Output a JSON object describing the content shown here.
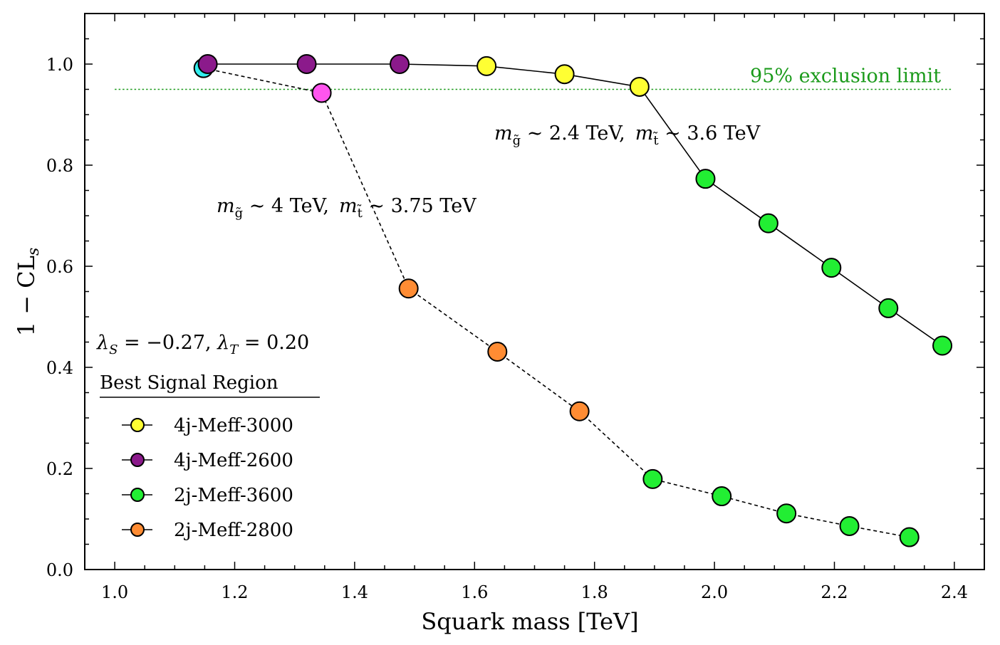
{
  "chart_data": {
    "type": "scatter",
    "xlabel": "Squark mass [TeV]",
    "ylabel": "1 − CL",
    "ylabel_sub": "s",
    "xlim": [
      0.95,
      2.45
    ],
    "ylim": [
      0.0,
      1.1
    ],
    "x_ticks": [
      1.0,
      1.2,
      1.4,
      1.6,
      1.8,
      2.0,
      2.2,
      2.4
    ],
    "x_tick_labels": [
      "1.0",
      "1.2",
      "1.4",
      "1.6",
      "1.8",
      "2.0",
      "2.2",
      "2.4"
    ],
    "y_ticks": [
      0.0,
      0.2,
      0.4,
      0.6,
      0.8,
      1.0
    ],
    "y_tick_labels": [
      "0.0",
      "0.2",
      "0.4",
      "0.6",
      "0.8",
      "1.0"
    ],
    "grid": false,
    "exclusion_line": {
      "y": 0.95,
      "label": "95% exclusion limit",
      "color": "#1a9a1a"
    },
    "series": [
      {
        "line_style": "solid",
        "points": [
          {
            "x": 1.155,
            "y": 1.0,
            "region": "4j-Meff-2600"
          },
          {
            "x": 1.32,
            "y": 1.0,
            "region": "4j-Meff-2600"
          },
          {
            "x": 1.475,
            "y": 1.0,
            "region": "4j-Meff-2600"
          },
          {
            "x": 1.62,
            "y": 0.996,
            "region": "4j-Meff-3000"
          },
          {
            "x": 1.75,
            "y": 0.98,
            "region": "4j-Meff-3000"
          },
          {
            "x": 1.875,
            "y": 0.955,
            "region": "4j-Meff-3000"
          },
          {
            "x": 1.985,
            "y": 0.773,
            "region": "2j-Meff-3600"
          },
          {
            "x": 2.09,
            "y": 0.685,
            "region": "2j-Meff-3600"
          },
          {
            "x": 2.195,
            "y": 0.597,
            "region": "2j-Meff-3600"
          },
          {
            "x": 2.29,
            "y": 0.517,
            "region": "2j-Meff-3600"
          },
          {
            "x": 2.38,
            "y": 0.443,
            "region": "2j-Meff-3600"
          }
        ]
      },
      {
        "line_style": "dashed",
        "points": [
          {
            "x": 1.148,
            "y": 0.992,
            "region": "cyan"
          },
          {
            "x": 1.345,
            "y": 0.943,
            "region": "magenta"
          },
          {
            "x": 1.49,
            "y": 0.556,
            "region": "2j-Meff-2800"
          },
          {
            "x": 1.638,
            "y": 0.431,
            "region": "2j-Meff-2800"
          },
          {
            "x": 1.775,
            "y": 0.313,
            "region": "2j-Meff-2800"
          },
          {
            "x": 1.897,
            "y": 0.179,
            "region": "2j-Meff-3600"
          },
          {
            "x": 2.012,
            "y": 0.145,
            "region": "2j-Meff-3600"
          },
          {
            "x": 2.12,
            "y": 0.111,
            "region": "2j-Meff-3600"
          },
          {
            "x": 2.225,
            "y": 0.086,
            "region": "2j-Meff-3600"
          },
          {
            "x": 2.325,
            "y": 0.064,
            "region": "2j-Meff-3600"
          }
        ]
      }
    ],
    "region_colors": {
      "4j-Meff-3000": "#ffff33",
      "4j-Meff-2600": "#8b1a8b",
      "2j-Meff-3600": "#22ee33",
      "2j-Meff-2800": "#ff8c33",
      "cyan": "#33eeee",
      "magenta": "#ff55ee"
    },
    "annotations": {
      "solid_curve": {
        "m1_sym": "m",
        "m1_sub": "g̃",
        "m1_val": " ∼ 2.4 TeV,",
        "m2_sym": "m",
        "m2_sub": "t̃",
        "m2_val": " ∼ 3.6 TeV"
      },
      "dashed_curve": {
        "m1_sym": "m",
        "m1_sub": "g̃",
        "m1_val": " ∼ 4 TeV,",
        "m2_sym": "m",
        "m2_sub": "t̃",
        "m2_val": " ∼ 3.75 TeV"
      },
      "lambda": {
        "s_sym": "λ",
        "s_sub": "S",
        "s_val": " = −0.27, ",
        "t_sym": "λ",
        "t_sub": "T",
        "t_val": " = 0.20"
      }
    },
    "legend": {
      "title": "Best Signal Region",
      "placement": "lower-left",
      "entries": [
        "4j-Meff-3000",
        "4j-Meff-2600",
        "2j-Meff-3600",
        "2j-Meff-2800"
      ]
    }
  }
}
